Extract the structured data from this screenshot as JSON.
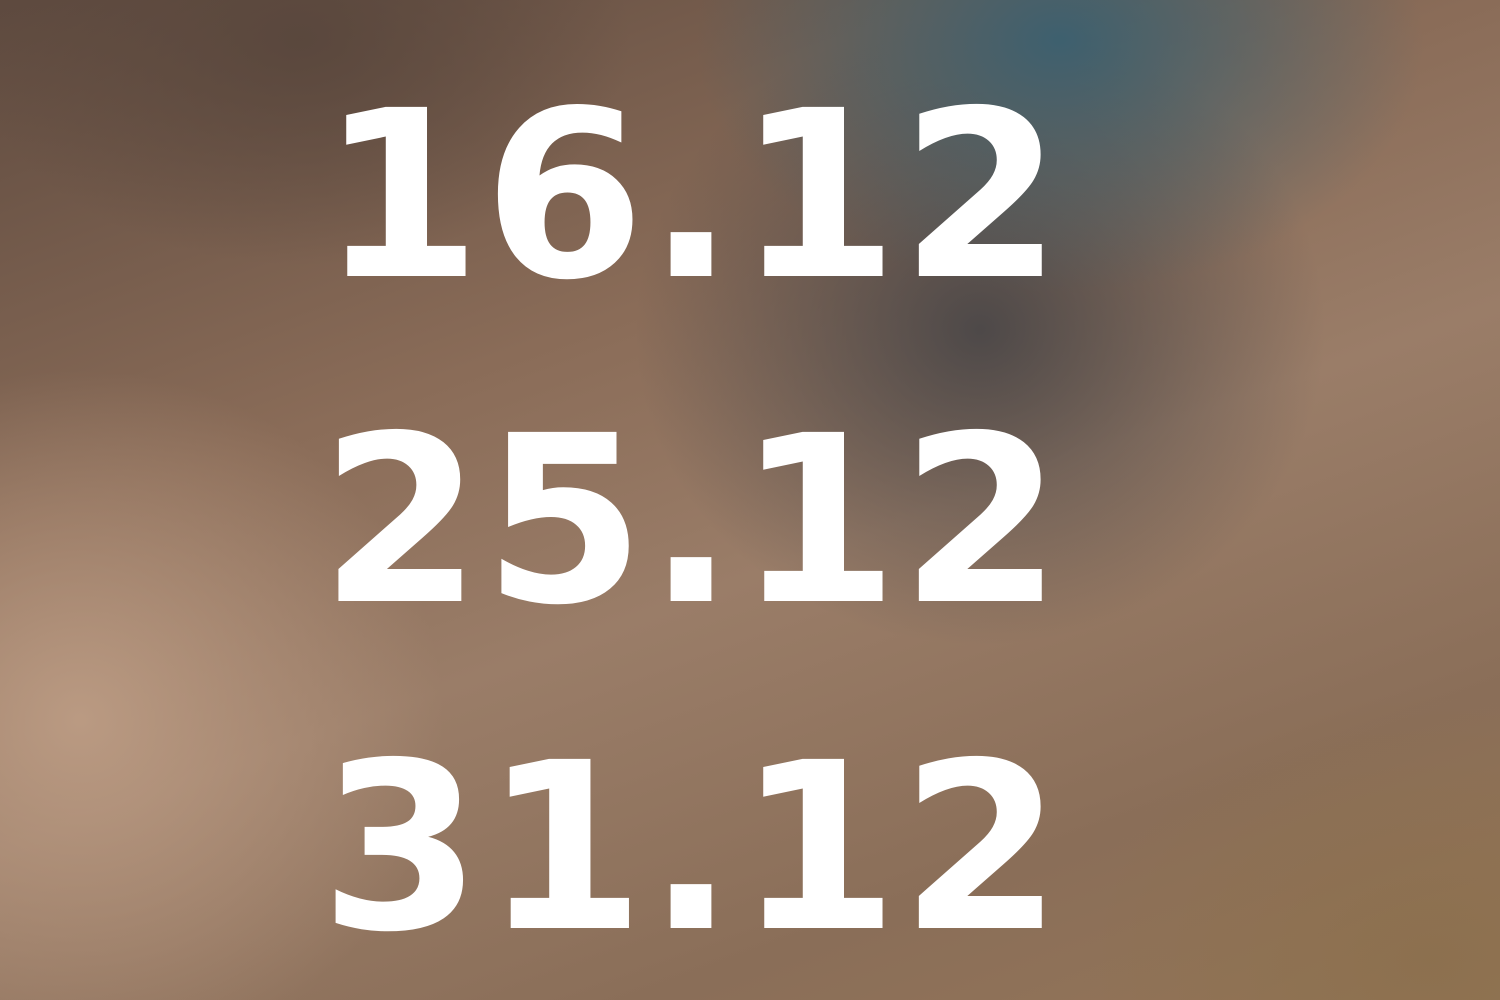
{
  "dates": [
    "16.12",
    "25.12",
    "31.12"
  ]
}
